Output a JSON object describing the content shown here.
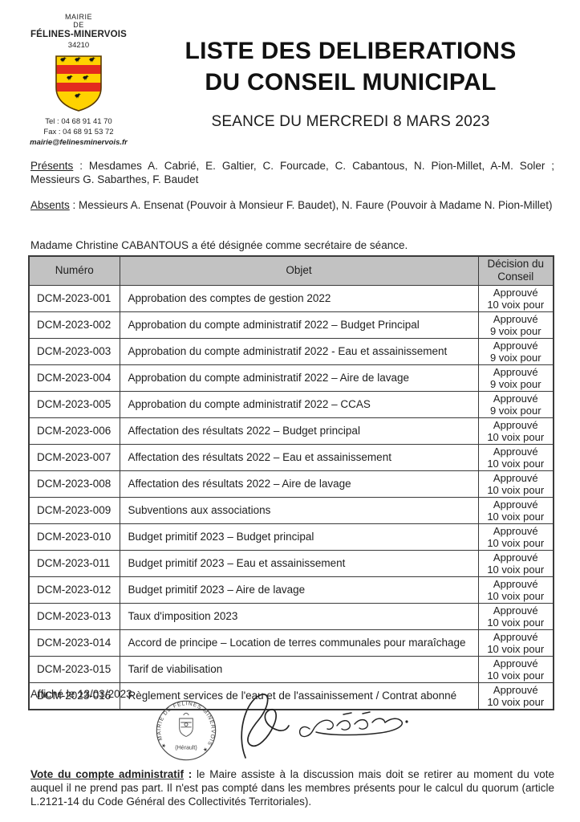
{
  "logo": {
    "org_line1": "MAIRIE",
    "org_line2": "DE",
    "org_line3": "FÉLINES-MINERVOIS",
    "postal_code": "34210",
    "tel": "Tel : 04 68 91 41 70",
    "fax": "Fax : 04 68 91 53 72",
    "email": "mairie@felinesminervois.fr"
  },
  "header": {
    "title_line1": "LISTE DES DELIBERATIONS",
    "title_line2": "DU CONSEIL MUNICIPAL",
    "session": "SEANCE DU MERCREDI 8 MARS 2023"
  },
  "attendance": {
    "presents_label": "Présents",
    "presents_sep": " : ",
    "presents_text": "Mesdames A. Cabrié, E. Galtier, C. Fourcade, C. Cabantous, N. Pion-Millet, A-M. Soler ; Messieurs G. Sabarthes, F. Baudet",
    "absents_label": "Absents",
    "absents_sep": " : ",
    "absents_text": "Messieurs A. Ensenat (Pouvoir à Monsieur F. Baudet), N. Faure (Pouvoir à Madame N. Pion-Millet)",
    "secretary": "Madame Christine CABANTOUS a été désignée comme secrétaire de séance."
  },
  "table": {
    "headers": {
      "numero": "Numéro",
      "objet": "Objet",
      "decision": "Décision du Conseil"
    },
    "rows": [
      {
        "numero": "DCM-2023-001",
        "objet": "Approbation des comptes de gestion 2022",
        "approval": "Approuvé",
        "votes": "10 voix pour"
      },
      {
        "numero": "DCM-2023-002",
        "objet": "Approbation du compte administratif 2022 – Budget Principal",
        "approval": "Approuvé",
        "votes": "9 voix pour"
      },
      {
        "numero": "DCM-2023-003",
        "objet": "Approbation du compte administratif 2022 - Eau et assainissement",
        "approval": "Approuvé",
        "votes": "9 voix pour"
      },
      {
        "numero": "DCM-2023-004",
        "objet": "Approbation du compte administratif 2022 – Aire de lavage",
        "approval": "Approuvé",
        "votes": "9 voix pour"
      },
      {
        "numero": "DCM-2023-005",
        "objet": "Approbation du compte administratif 2022 – CCAS",
        "approval": "Approuvé",
        "votes": "9 voix pour"
      },
      {
        "numero": "DCM-2023-006",
        "objet": "Affectation des résultats 2022 – Budget principal",
        "approval": "Approuvé",
        "votes": "10 voix pour"
      },
      {
        "numero": "DCM-2023-007",
        "objet": "Affectation des résultats 2022 – Eau et assainissement",
        "approval": "Approuvé",
        "votes": "10 voix pour"
      },
      {
        "numero": "DCM-2023-008",
        "objet": "Affectation des résultats 2022 – Aire de lavage",
        "approval": "Approuvé",
        "votes": "10 voix pour"
      },
      {
        "numero": "DCM-2023-009",
        "objet": "Subventions aux associations",
        "approval": "Approuvé",
        "votes": "10 voix pour"
      },
      {
        "numero": "DCM-2023-010",
        "objet": "Budget primitif 2023 – Budget principal",
        "approval": "Approuvé",
        "votes": "10 voix pour"
      },
      {
        "numero": "DCM-2023-011",
        "objet": "Budget primitif 2023 – Eau et assainissement",
        "approval": "Approuvé",
        "votes": "10 voix pour"
      },
      {
        "numero": "DCM-2023-012",
        "objet": "Budget primitif 2023 – Aire de lavage",
        "approval": "Approuvé",
        "votes": "10 voix pour"
      },
      {
        "numero": "DCM-2023-013",
        "objet": "Taux d'imposition 2023",
        "approval": "Approuvé",
        "votes": "10 voix pour"
      },
      {
        "numero": "DCM-2023-014",
        "objet": "Accord de principe – Location de terres communales pour maraîchage",
        "approval": "Approuvé",
        "votes": "10 voix pour"
      },
      {
        "numero": "DCM-2023-015",
        "objet": "Tarif de viabilisation",
        "approval": "Approuvé",
        "votes": "10 voix pour"
      },
      {
        "numero": "DCM-2023-016",
        "objet": "Règlement services de l'eau et de l'assainissement / Contrat abonné",
        "approval": "Approuvé",
        "votes": "10 voix pour"
      }
    ]
  },
  "footer": {
    "published": "Affiché le 13/03/2023",
    "stamp_text_circular": "★ MAIRIE DE FÉLINES MINERVOIS ★",
    "stamp_text_bottom": "(Hérault)"
  },
  "note": {
    "label": "Vote du compte administratif",
    "sep": " :  ",
    "text": "le Maire assiste à la discussion mais doit se retirer au moment du vote auquel il ne prend pas part. Il n'est pas compté dans les membres présents pour le calcul du quorum (article L.2121-14 du Code Général des Collectivités Territoriales)."
  },
  "colors": {
    "table_header_bg": "#c2c2c2",
    "shield_red": "#e32b1e",
    "shield_yellow": "#ffd200",
    "border": "#3a3a3a"
  }
}
